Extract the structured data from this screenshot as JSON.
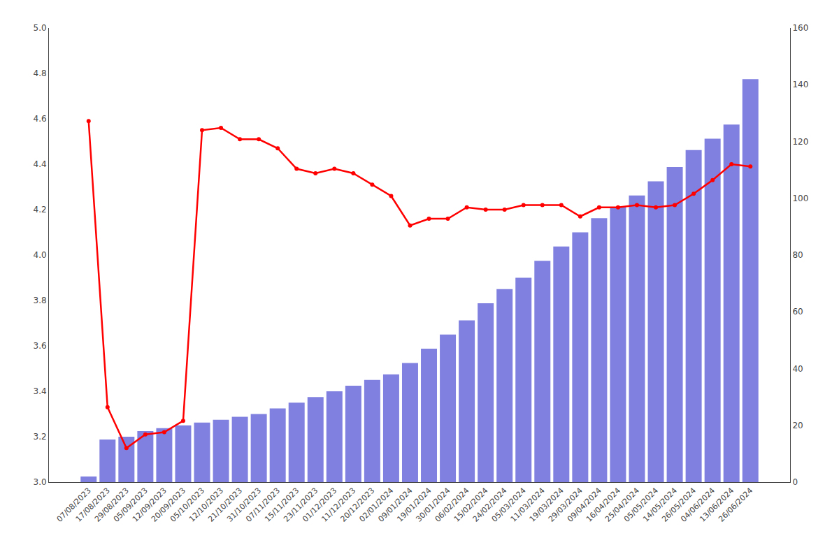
{
  "chart_data": {
    "type": "bar",
    "categories": [
      "07/08/2023",
      "17/08/2023",
      "29/08/2023",
      "05/09/2023",
      "12/09/2023",
      "20/09/2023",
      "05/10/2023",
      "12/10/2023",
      "21/10/2023",
      "31/10/2023",
      "07/11/2023",
      "15/11/2023",
      "23/11/2023",
      "01/12/2023",
      "11/12/2023",
      "20/12/2023",
      "02/01/2024",
      "09/01/2024",
      "19/01/2024",
      "30/01/2024",
      "06/02/2024",
      "15/02/2024",
      "24/02/2024",
      "05/03/2024",
      "11/03/2024",
      "19/03/2024",
      "29/03/2024",
      "09/04/2024",
      "16/04/2024",
      "25/04/2024",
      "05/05/2024",
      "14/05/2024",
      "26/05/2024",
      "04/06/2024",
      "13/06/2024",
      "26/06/2024"
    ],
    "series": [
      {
        "type": "bar",
        "color": "#8080e0",
        "axis": "y2",
        "values": [
          2,
          15,
          16,
          18,
          19,
          20,
          21,
          22,
          23,
          24,
          26,
          28,
          30,
          32,
          34,
          36,
          38,
          42,
          47,
          52,
          57,
          63,
          68,
          72,
          78,
          83,
          88,
          93,
          97,
          101,
          106,
          111,
          117,
          121,
          126,
          142
        ]
      },
      {
        "type": "line",
        "color": "#ff0000",
        "marker": "circle",
        "values": [
          4.59,
          3.33,
          3.15,
          3.21,
          3.22,
          3.27,
          4.55,
          4.56,
          4.51,
          4.51,
          4.47,
          4.38,
          4.36,
          4.38,
          4.36,
          4.31,
          4.26,
          4.13,
          4.16,
          4.16,
          4.21,
          4.2,
          4.2,
          4.22,
          4.22,
          4.22,
          4.17,
          4.21,
          4.21,
          4.22,
          4.21,
          4.22,
          4.27,
          4.33,
          4.4,
          4.39
        ]
      }
    ],
    "ylim": [
      3.0,
      5.0
    ],
    "yticks": [
      {
        "value": 3.0,
        "label": "3.0"
      },
      3.2,
      3.4,
      3.6,
      3.8,
      {
        "value": 4.0,
        "label": "4.0"
      },
      4.2,
      4.4,
      4.6,
      4.8,
      {
        "value": 5.0,
        "label": "5.0"
      }
    ],
    "y2lim": [
      0,
      160
    ],
    "y2ticks": [
      0,
      20,
      40,
      60,
      80,
      100,
      120,
      140,
      160
    ],
    "grid": false
  }
}
